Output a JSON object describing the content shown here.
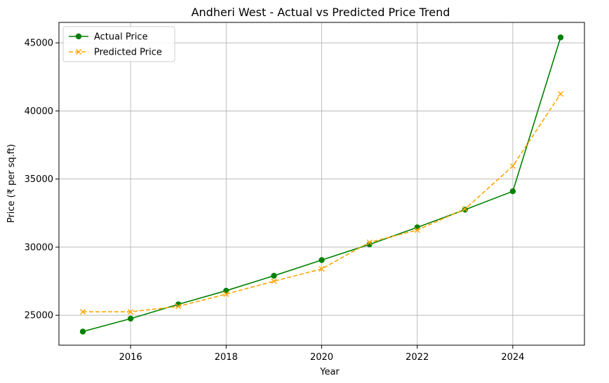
{
  "chart_data": {
    "type": "line",
    "title": "Andheri West - Actual vs Predicted Price Trend",
    "xlabel": "Year",
    "ylabel": "Price (₹ per sq.ft)",
    "xlim": [
      2014.5,
      2025.5
    ],
    "ylim": [
      22800,
      46500
    ],
    "xticks": [
      2016,
      2018,
      2020,
      2022,
      2024
    ],
    "yticks": [
      25000,
      30000,
      35000,
      40000,
      45000
    ],
    "grid": true,
    "legend_position": "top-left",
    "x": [
      2015,
      2016,
      2017,
      2018,
      2019,
      2020,
      2021,
      2022,
      2023,
      2024,
      2025
    ],
    "series": [
      {
        "name": "Actual Price",
        "color": "#008000",
        "marker": "circle",
        "linestyle": "solid",
        "values": [
          23800,
          24750,
          25800,
          26800,
          27900,
          29050,
          30200,
          31450,
          32750,
          34100,
          45400
        ]
      },
      {
        "name": "Predicted Price",
        "color": "#FFA500",
        "marker": "x",
        "linestyle": "dashed",
        "values": [
          25250,
          25250,
          25650,
          26550,
          27500,
          28400,
          30350,
          31250,
          32800,
          35950,
          41250
        ]
      }
    ]
  }
}
